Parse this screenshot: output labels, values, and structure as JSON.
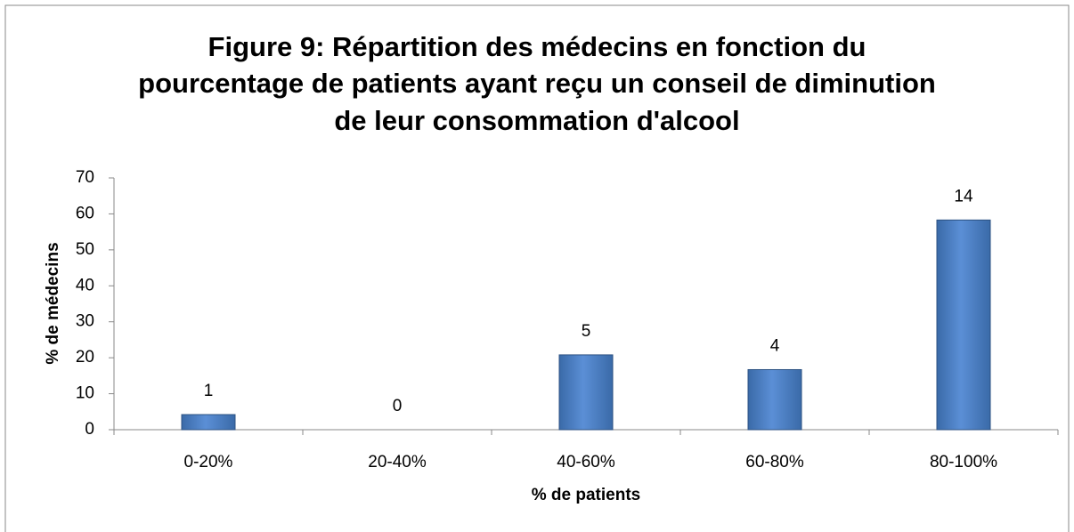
{
  "chart_data": {
    "type": "bar",
    "title": [
      "Figure 9: Répartition des médecins en fonction du",
      "pourcentage de patients ayant reçu un conseil de diminution",
      "de leur consommation d'alcool"
    ],
    "x_label": "% de patients",
    "y_label": "% de médecins",
    "categories": [
      "0-20%",
      "20-40%",
      "40-60%",
      "60-80%",
      "80-100%"
    ],
    "values": [
      4.2,
      0,
      20.8,
      16.7,
      58.3
    ],
    "counts": [
      1,
      0,
      5,
      4,
      14
    ],
    "color": "#4f81bd",
    "ylim": [
      0,
      70
    ],
    "yticks": [
      0,
      10,
      20,
      30,
      40,
      50,
      60,
      70
    ],
    "grid": false
  }
}
